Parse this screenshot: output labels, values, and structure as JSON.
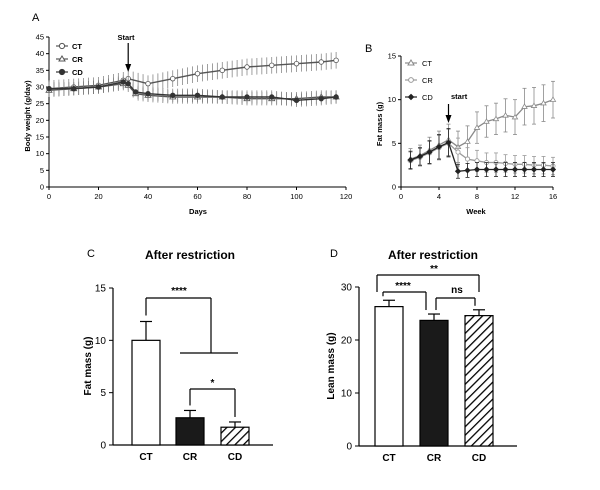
{
  "chart_data": [
    {
      "panel": "A",
      "type": "line",
      "xlabel": "Days",
      "ylabel": "Body weight (g/day)",
      "xlim": [
        0,
        120
      ],
      "ylim": [
        0,
        45
      ],
      "xticks": [
        0,
        20,
        40,
        60,
        80,
        100,
        120
      ],
      "yticks": [
        0,
        5,
        10,
        15,
        20,
        25,
        30,
        35,
        40,
        45
      ],
      "annotation": "Start",
      "annotation_x": 32,
      "series": [
        {
          "name": "CT",
          "x": [
            0,
            10,
            20,
            30,
            32,
            40,
            50,
            60,
            70,
            80,
            90,
            100,
            110,
            116
          ],
          "y": [
            29.5,
            30,
            30.5,
            32,
            32.5,
            31,
            32.5,
            34,
            35,
            36,
            36.5,
            37,
            37.5,
            38
          ],
          "err": 2.5
        },
        {
          "name": "CR",
          "x": [
            0,
            10,
            20,
            30,
            32,
            35,
            40,
            50,
            60,
            70,
            80,
            90,
            100,
            110,
            116
          ],
          "y": [
            29,
            29.5,
            30,
            31,
            30.5,
            28,
            27.5,
            27,
            27,
            27,
            26.5,
            26.5,
            26.5,
            27,
            27
          ],
          "err": 2
        },
        {
          "name": "CD",
          "x": [
            0,
            10,
            20,
            30,
            32,
            35,
            40,
            50,
            60,
            70,
            80,
            90,
            100,
            110,
            116
          ],
          "y": [
            29.5,
            29.5,
            30,
            31.5,
            31,
            28.5,
            28,
            27.5,
            27.5,
            27,
            27,
            27,
            26,
            26.5,
            27
          ],
          "err": 2
        }
      ]
    },
    {
      "panel": "B",
      "type": "line",
      "xlabel": "Week",
      "ylabel": "Fat mass (g)",
      "xlim": [
        0,
        16
      ],
      "ylim": [
        0,
        15
      ],
      "xticks": [
        0,
        4,
        8,
        12,
        16
      ],
      "yticks": [
        0,
        5,
        10,
        15
      ],
      "annotation": "start",
      "annotation_x": 5,
      "series": [
        {
          "name": "CT",
          "x": [
            1,
            2,
            3,
            4,
            5,
            6,
            7,
            8,
            9,
            10,
            11,
            12,
            13,
            14,
            15,
            16
          ],
          "y": [
            3.2,
            3.6,
            4.2,
            4.8,
            5.4,
            4.6,
            5.2,
            6.8,
            7.5,
            7.8,
            8.2,
            8.0,
            9.2,
            9.3,
            9.6,
            10.0
          ],
          "err": [
            1.2,
            1.2,
            1.5,
            1.6,
            1.8,
            1.8,
            1.8,
            1.8,
            1.8,
            1.8,
            1.9,
            2.0,
            2.1,
            2.1,
            2.1,
            2.1
          ]
        },
        {
          "name": "CR",
          "x": [
            1,
            2,
            3,
            4,
            5,
            6,
            7,
            8,
            9,
            10,
            11,
            12,
            13,
            14,
            15,
            16
          ],
          "y": [
            3.0,
            3.4,
            3.9,
            4.5,
            5.0,
            4.0,
            3.2,
            3.0,
            2.8,
            2.8,
            2.7,
            2.6,
            2.6,
            2.5,
            2.5,
            2.4
          ],
          "err": [
            1.0,
            1.0,
            1.3,
            1.4,
            1.6,
            1.6,
            1.3,
            1.2,
            1.1,
            1.1,
            1.0,
            1.0,
            1.0,
            1.0,
            1.0,
            1.0
          ]
        },
        {
          "name": "CD",
          "x": [
            1,
            2,
            3,
            4,
            5,
            6,
            7,
            8,
            9,
            10,
            11,
            12,
            13,
            14,
            15,
            16
          ],
          "y": [
            3.1,
            3.5,
            4.0,
            4.6,
            5.1,
            1.8,
            1.9,
            2.0,
            2.0,
            2.0,
            2.0,
            2.0,
            2.0,
            2.0,
            2.0,
            2.0
          ],
          "err": [
            1.0,
            1.0,
            1.3,
            1.4,
            1.6,
            0.8,
            0.8,
            0.8,
            0.8,
            0.8,
            0.8,
            0.8,
            0.8,
            0.8,
            0.8,
            0.8
          ]
        }
      ]
    },
    {
      "panel": "C",
      "type": "bar",
      "title": "After restriction",
      "ylabel": "Fat mass (g)",
      "ylim": [
        0,
        15
      ],
      "yticks": [
        0,
        5,
        10,
        15
      ],
      "categories": [
        "CT",
        "CR",
        "CD"
      ],
      "values": [
        10.0,
        2.6,
        1.7
      ],
      "errors": [
        1.8,
        0.7,
        0.5
      ],
      "fills": [
        "#ffffff",
        "#1a1a1a",
        "hatch"
      ],
      "significance": [
        {
          "from": "CT",
          "to": "CR-CD",
          "label": "****"
        },
        {
          "from": "CR",
          "to": "CD",
          "label": "*"
        }
      ]
    },
    {
      "panel": "D",
      "type": "bar",
      "title": "After restriction",
      "ylabel": "Lean mass (g)",
      "ylim": [
        0,
        30
      ],
      "yticks": [
        0,
        10,
        20,
        30
      ],
      "categories": [
        "CT",
        "CR",
        "CD"
      ],
      "values": [
        26.3,
        23.7,
        24.6
      ],
      "errors": [
        1.2,
        1.2,
        1.1
      ],
      "fills": [
        "#ffffff",
        "#1a1a1a",
        "hatch"
      ],
      "significance": [
        {
          "from": "CT",
          "to": "CR",
          "label": "****"
        },
        {
          "from": "CR",
          "to": "CD",
          "label": "ns"
        },
        {
          "from": "CT",
          "to": "CD",
          "label": "**"
        }
      ]
    }
  ]
}
